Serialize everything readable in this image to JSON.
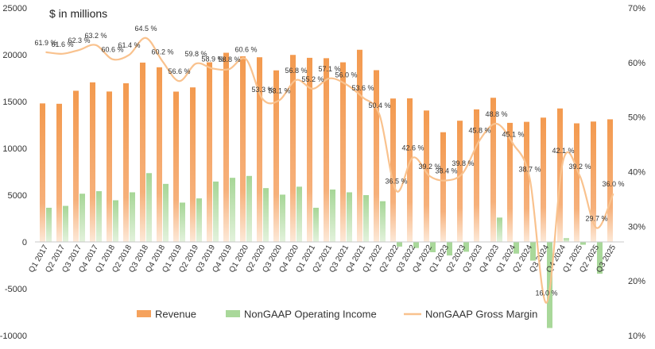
{
  "chart_data": {
    "type": "bar+line",
    "title": "$ in millions",
    "categories": [
      "Q1 2017",
      "Q2 2017",
      "Q3 2017",
      "Q4 2017",
      "Q1 2018",
      "Q2 2018",
      "Q3 2018",
      "Q4 2018",
      "Q1 2019",
      "Q2 2019",
      "Q3 2019",
      "Q4 2019",
      "Q1 2020",
      "Q2 2020",
      "Q3 2020",
      "Q4 2020",
      "Q1 2021",
      "Q2 2021",
      "Q3 2021",
      "Q4 2021",
      "Q1 2022",
      "Q2 2022",
      "Q3 2022",
      "Q4 2022",
      "Q1 2023",
      "Q2 2023",
      "Q3 2023",
      "Q4 2023",
      "Q1 2024",
      "Q2 2024",
      "Q3 2024",
      "Q4 2024",
      "Q1 2025",
      "Q2 2025",
      "Q3 2025"
    ],
    "series": [
      {
        "name": "Revenue",
        "axis": "left",
        "kind": "bar",
        "color": "#f5a25d",
        "values": [
          14800,
          14760,
          16150,
          17050,
          16070,
          16950,
          19160,
          18660,
          16060,
          16510,
          19190,
          20210,
          19830,
          19730,
          18330,
          19980,
          19670,
          19630,
          19190,
          20530,
          18350,
          15320,
          15340,
          14040,
          11720,
          12950,
          14160,
          15400,
          12720,
          12830,
          13280,
          14260,
          12670,
          12860,
          13100
        ]
      },
      {
        "name": "NonGAAP Operating Income",
        "axis": "left",
        "kind": "bar",
        "color": "#a9d89a",
        "values": [
          3650,
          3850,
          5150,
          5420,
          4450,
          5300,
          7350,
          6200,
          4200,
          4650,
          6450,
          6850,
          7050,
          5750,
          5050,
          5900,
          3650,
          5600,
          5300,
          5000,
          4350,
          -500,
          -650,
          -1100,
          -1450,
          -1050,
          0,
          2600,
          -1250,
          -2000,
          -9200,
          400,
          -300,
          -3400,
          0
        ]
      },
      {
        "name": "NonGAAP Gross Margin",
        "axis": "right",
        "kind": "line",
        "color": "#f9c28e",
        "values": [
          61.9,
          61.6,
          62.3,
          63.2,
          60.6,
          61.4,
          64.5,
          60.2,
          56.6,
          59.8,
          58.9,
          58.8,
          60.6,
          53.3,
          53.1,
          56.8,
          55.2,
          57.1,
          56.0,
          53.6,
          50.4,
          36.5,
          42.6,
          39.2,
          38.4,
          39.8,
          45.8,
          48.8,
          45.1,
          38.7,
          16.0,
          42.1,
          39.2,
          29.7,
          36.0
        ],
        "labels": [
          "61.9 %",
          "61.6 %",
          "62.3 %",
          "63.2 %",
          "60.6 %",
          "61.4 %",
          "64.5 %",
          "60.2 %",
          "56.6 %",
          "59.8 %",
          "58.9 %",
          "58.8 %",
          "60.6 %",
          "53.3 %",
          "53.1 %",
          "56.8 %",
          "55.2 %",
          "57.1 %",
          "56.0 %",
          "53.6 %",
          "50.4 %",
          "36.5 %",
          "42.6 %",
          "39.2 %",
          "38.4 %",
          "39.8 %",
          "45.8 %",
          "48.8 %",
          "45.1 %",
          "38.7 %",
          "16.0 %",
          "42.1 %",
          "39.2 %",
          "29.7 %",
          "36.0 %"
        ]
      }
    ],
    "y_left": {
      "range": [
        -10000,
        25000
      ],
      "ticks": [
        "-10000",
        "-5000",
        "0",
        "5000",
        "10000",
        "15000",
        "20000",
        "25000"
      ]
    },
    "y_right": {
      "range": [
        10,
        70
      ],
      "ticks": [
        "10%",
        "20%",
        "30%",
        "40%",
        "50%",
        "60%",
        "70%"
      ]
    },
    "legend": {
      "position": "bottom",
      "entries": [
        "Revenue",
        "NonGAAP Operating Income",
        "NonGAAP Gross Margin"
      ]
    },
    "grid": false
  }
}
